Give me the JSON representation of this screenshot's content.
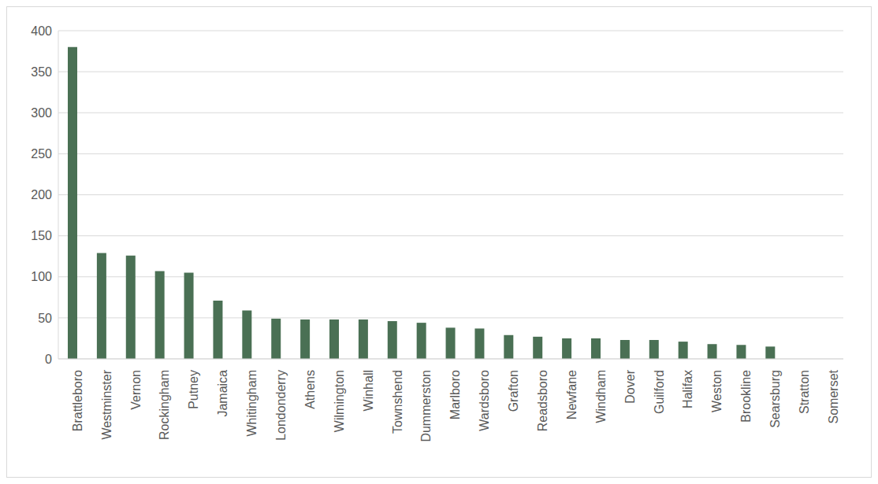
{
  "chart_data": {
    "type": "bar",
    "categories": [
      "Brattleboro",
      "Westminster",
      "Vernon",
      "Rockingham",
      "Putney",
      "Jamaica",
      "Whitingham",
      "Londonderry",
      "Athens",
      "Wilmington",
      "Winhall",
      "Townshend",
      "Dummerston",
      "Marlboro",
      "Wardsboro",
      "Grafton",
      "Readsboro",
      "Newfane",
      "Windham",
      "Dover",
      "Guilford",
      "Halifax",
      "Weston",
      "Brookline",
      "Searsburg",
      "Stratton",
      "Somerset"
    ],
    "values": [
      380,
      129,
      126,
      107,
      105,
      71,
      59,
      49,
      48,
      48,
      48,
      46,
      44,
      38,
      37,
      29,
      27,
      25,
      25,
      23,
      23,
      21,
      18,
      17,
      15,
      0,
      0
    ],
    "color": "#4a7054",
    "ylim": [
      0,
      400
    ],
    "yticks": [
      0,
      50,
      100,
      150,
      200,
      250,
      300,
      350,
      400
    ],
    "grid": true
  }
}
